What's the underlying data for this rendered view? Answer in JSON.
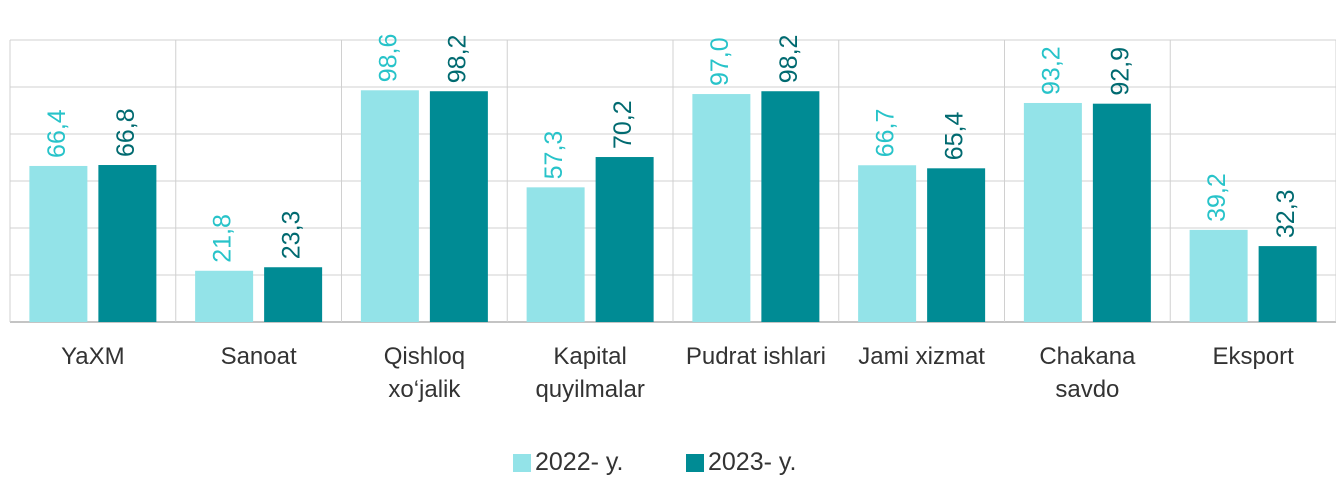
{
  "chart_data": {
    "type": "bar",
    "categories": [
      "YaXM",
      "Sanoat",
      "Qishloq xo‘jalik",
      "Kapital quyilmalar",
      "Pudrat ishlari",
      "Jami xizmat",
      "Chakana savdo",
      "Eksport"
    ],
    "series": [
      {
        "name": "2022- y.",
        "color": "#93e3e8",
        "label_color": "#27c3c9",
        "values": [
          66.4,
          21.8,
          98.6,
          57.3,
          97.0,
          66.7,
          93.2,
          39.2
        ],
        "value_labels": [
          "66,4",
          "21,8",
          "98,6",
          "57,3",
          "97,0",
          "66,7",
          "93,2",
          "39,2"
        ]
      },
      {
        "name": "2023- y.",
        "color": "#008b94",
        "label_color": "#006a70",
        "values": [
          66.8,
          23.3,
          98.2,
          70.2,
          98.2,
          65.4,
          92.9,
          32.3
        ],
        "value_labels": [
          "66,8",
          "23,3",
          "98,2",
          "70,2",
          "98,2",
          "65,4",
          "92,9",
          "32,3"
        ]
      }
    ],
    "ylim": [
      0,
      120
    ],
    "yticks": [
      0,
      20,
      40,
      60,
      80,
      100,
      120
    ],
    "grid": true
  }
}
